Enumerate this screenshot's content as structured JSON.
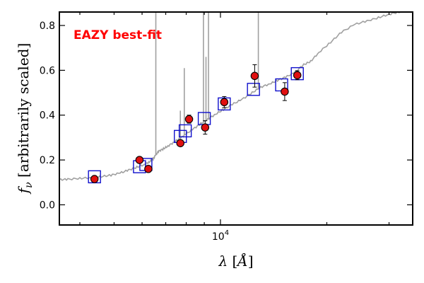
{
  "chart_data": {
    "type": "scatter",
    "xscale": "log",
    "xlim": [
      3500,
      35000
    ],
    "ylim": [
      -0.09,
      0.86
    ],
    "xlabel": "λ [Å]",
    "ylabel": "f_ν [arbitrarily scaled]",
    "xticks": [
      {
        "value": 10000,
        "label": "10^4"
      }
    ],
    "yticks": [
      0.0,
      0.2,
      0.4,
      0.6,
      0.8
    ],
    "yticklabels": [
      "0.0",
      "0.2",
      "0.4",
      "0.6",
      "0.8"
    ],
    "annotation": "EAZY best-fit",
    "colors": {
      "annotation": "#ff0000",
      "observed": "#e01010",
      "model_photometry": "#1010cc",
      "sed": "#a0a0a0"
    },
    "series": [
      {
        "role": "observed",
        "marker": "circle",
        "points": [
          {
            "x": 4400,
            "y": 0.115,
            "err": 0.01
          },
          {
            "x": 5900,
            "y": 0.2,
            "err": 0.008
          },
          {
            "x": 6250,
            "y": 0.16,
            "err": 0.008
          },
          {
            "x": 7700,
            "y": 0.275,
            "err": 0.01
          },
          {
            "x": 8150,
            "y": 0.382,
            "err": 0.018
          },
          {
            "x": 9050,
            "y": 0.345,
            "err": 0.03
          },
          {
            "x": 10250,
            "y": 0.458,
            "err": 0.025
          },
          {
            "x": 12500,
            "y": 0.575,
            "err": 0.05
          },
          {
            "x": 15200,
            "y": 0.505,
            "err": 0.04
          },
          {
            "x": 16500,
            "y": 0.578,
            "err": 0.02
          }
        ]
      },
      {
        "role": "model_photometry",
        "marker": "square",
        "points": [
          {
            "x": 4400,
            "y": 0.125
          },
          {
            "x": 5900,
            "y": 0.17
          },
          {
            "x": 6150,
            "y": 0.18
          },
          {
            "x": 7700,
            "y": 0.305
          },
          {
            "x": 7950,
            "y": 0.33
          },
          {
            "x": 9000,
            "y": 0.385
          },
          {
            "x": 10250,
            "y": 0.45
          },
          {
            "x": 12400,
            "y": 0.515
          },
          {
            "x": 14900,
            "y": 0.535
          },
          {
            "x": 16500,
            "y": 0.585
          }
        ]
      },
      {
        "role": "sed",
        "marker": "line",
        "points": [
          {
            "x": 3500,
            "y": 0.112
          },
          {
            "x": 3700,
            "y": 0.114
          },
          {
            "x": 4000,
            "y": 0.118
          },
          {
            "x": 4300,
            "y": 0.121
          },
          {
            "x": 4600,
            "y": 0.126
          },
          {
            "x": 4900,
            "y": 0.132
          },
          {
            "x": 5200,
            "y": 0.142
          },
          {
            "x": 5500,
            "y": 0.155
          },
          {
            "x": 5800,
            "y": 0.168
          },
          {
            "x": 6100,
            "y": 0.18
          },
          {
            "x": 6300,
            "y": 0.192
          },
          {
            "x": 6450,
            "y": 0.205
          },
          {
            "x": 6550,
            "y": 0.222
          },
          {
            "x": 6700,
            "y": 0.24
          },
          {
            "x": 6900,
            "y": 0.25
          },
          {
            "x": 7100,
            "y": 0.262
          },
          {
            "x": 7400,
            "y": 0.28
          },
          {
            "x": 7700,
            "y": 0.298
          },
          {
            "x": 8000,
            "y": 0.316
          },
          {
            "x": 8400,
            "y": 0.34
          },
          {
            "x": 8800,
            "y": 0.362
          },
          {
            "x": 9200,
            "y": 0.382
          },
          {
            "x": 9700,
            "y": 0.405
          },
          {
            "x": 10200,
            "y": 0.425
          },
          {
            "x": 10800,
            "y": 0.448
          },
          {
            "x": 11500,
            "y": 0.47
          },
          {
            "x": 12300,
            "y": 0.5
          },
          {
            "x": 13000,
            "y": 0.525
          },
          {
            "x": 13800,
            "y": 0.54
          },
          {
            "x": 14500,
            "y": 0.555
          },
          {
            "x": 15300,
            "y": 0.57
          },
          {
            "x": 16200,
            "y": 0.59
          },
          {
            "x": 17200,
            "y": 0.625
          },
          {
            "x": 18000,
            "y": 0.64
          },
          {
            "x": 19000,
            "y": 0.68
          },
          {
            "x": 20500,
            "y": 0.725
          },
          {
            "x": 22000,
            "y": 0.77
          },
          {
            "x": 24000,
            "y": 0.805
          },
          {
            "x": 26000,
            "y": 0.82
          },
          {
            "x": 28000,
            "y": 0.835
          },
          {
            "x": 30000,
            "y": 0.85
          },
          {
            "x": 32000,
            "y": 0.86
          },
          {
            "x": 35000,
            "y": 0.87
          }
        ]
      },
      {
        "role": "emission_lines",
        "marker": "spike",
        "points": [
          {
            "x": 6563,
            "y": 0.86
          },
          {
            "x": 7700,
            "y": 0.42
          },
          {
            "x": 7900,
            "y": 0.61
          },
          {
            "x": 8950,
            "y": 0.86
          },
          {
            "x": 9100,
            "y": 0.66
          },
          {
            "x": 9250,
            "y": 0.86
          },
          {
            "x": 12800,
            "y": 0.86
          }
        ]
      }
    ]
  }
}
